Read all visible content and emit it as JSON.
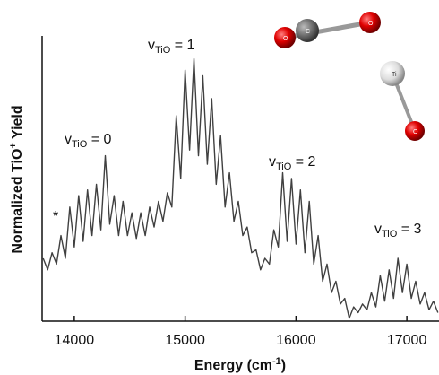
{
  "chart_data": {
    "type": "line",
    "x_label": {
      "main": "Energy (cm",
      "sup": "-1",
      "end": ")"
    },
    "y_label": {
      "main": "Normalized TiO",
      "sup": "+",
      "end": " Yield"
    },
    "xlim": [
      13710,
      17290
    ],
    "ylim": [
      0,
      100
    ],
    "xticks": [
      {
        "value": 14000,
        "label": "14000"
      },
      {
        "value": 15000,
        "label": "15000"
      },
      {
        "value": 16000,
        "label": "16000"
      },
      {
        "value": 17000,
        "label": "17000"
      }
    ],
    "annotations": [
      {
        "v": "v",
        "sub": "TiO",
        "eq": " = 0"
      },
      {
        "v": "v",
        "sub": "TiO",
        "eq": " = 1"
      },
      {
        "v": "v",
        "sub": "TiO",
        "eq": " = 2"
      },
      {
        "v": "v",
        "sub": "TiO",
        "eq": " = 3"
      },
      {
        "v": "*"
      }
    ],
    "molecule_labels": [
      "O",
      "C",
      "O",
      "Ti",
      "O"
    ],
    "series": [
      {
        "color": "#404040",
        "x": [
          13720,
          13760,
          13800,
          13840,
          13880,
          13920,
          13960,
          14000,
          14040,
          14080,
          14120,
          14160,
          14200,
          14240,
          14280,
          14320,
          14360,
          14400,
          14440,
          14480,
          14520,
          14560,
          14600,
          14640,
          14680,
          14720,
          14760,
          14800,
          14840,
          14880,
          14920,
          14960,
          15000,
          15040,
          15080,
          15120,
          15160,
          15200,
          15240,
          15280,
          15320,
          15360,
          15400,
          15440,
          15480,
          15520,
          15560,
          15600,
          15640,
          15680,
          15720,
          15760,
          15800,
          15840,
          15880,
          15920,
          15960,
          16000,
          16040,
          16080,
          16120,
          16160,
          16200,
          16240,
          16280,
          16320,
          16360,
          16400,
          16440,
          16480,
          16520,
          16560,
          16600,
          16640,
          16680,
          16720,
          16760,
          16800,
          16840,
          16880,
          16920,
          16960,
          17000,
          17040,
          17080,
          17120,
          17160,
          17200,
          17240,
          17280
        ],
        "values": [
          22,
          18,
          24,
          20,
          30,
          22,
          40,
          26,
          44,
          28,
          46,
          30,
          48,
          32,
          58,
          34,
          44,
          30,
          42,
          30,
          38,
          29,
          38,
          30,
          40,
          33,
          42,
          35,
          45,
          40,
          72,
          50,
          88,
          60,
          92,
          58,
          86,
          55,
          78,
          48,
          65,
          40,
          52,
          35,
          42,
          30,
          33,
          24,
          25,
          18,
          22,
          20,
          32,
          26,
          52,
          28,
          50,
          27,
          46,
          24,
          42,
          20,
          30,
          14,
          20,
          10,
          14,
          6,
          8,
          1,
          5,
          3,
          6,
          4,
          10,
          5,
          16,
          7,
          18,
          8,
          22,
          10,
          20,
          8,
          14,
          6,
          10,
          4,
          7,
          3
        ]
      }
    ]
  }
}
